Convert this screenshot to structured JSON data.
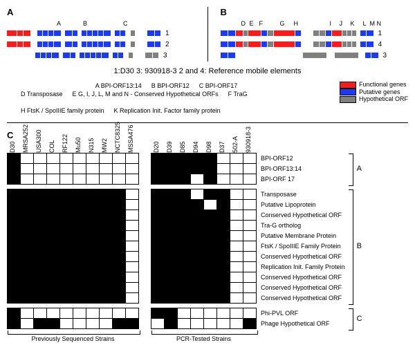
{
  "colors": {
    "functional": "#ff1a1a",
    "putative": "#1a3aff",
    "hypothetical": "#808080",
    "black": "#000000",
    "white": "#ffffff"
  },
  "panelA": {
    "label": "A",
    "letters": [
      "A",
      "B",
      "C"
    ],
    "letterX": [
      72,
      110,
      168
    ],
    "rows": [
      {
        "num": "1",
        "genes": [
          [
            "functional",
            14
          ],
          [
            "functional",
            8
          ],
          [
            "functional",
            10
          ],
          [
            "gap",
            8
          ],
          [
            "putative",
            7
          ],
          [
            "putative",
            7
          ],
          [
            "putative",
            7
          ],
          [
            "putative",
            10
          ],
          [
            "gap",
            4
          ],
          [
            "putative",
            10
          ],
          [
            "putative",
            7
          ],
          [
            "gap",
            4
          ],
          [
            "putative",
            7
          ],
          [
            "putative",
            7
          ],
          [
            "putative",
            7
          ],
          [
            "putative",
            7
          ],
          [
            "putative",
            10
          ],
          [
            "gap",
            4
          ],
          [
            "putative",
            7
          ],
          [
            "putative",
            7
          ],
          [
            "gap",
            6
          ],
          [
            "hypothetical",
            6
          ],
          [
            "gap",
            16
          ],
          [
            "putative",
            10
          ],
          [
            "putative",
            8
          ]
        ]
      },
      {
        "num": "2",
        "genes": [
          [
            "functional",
            14
          ],
          [
            "functional",
            8
          ],
          [
            "functional",
            10
          ],
          [
            "gap",
            8
          ],
          [
            "putative",
            7
          ],
          [
            "putative",
            7
          ],
          [
            "putative",
            7
          ],
          [
            "putative",
            10
          ],
          [
            "gap",
            4
          ],
          [
            "putative",
            10
          ],
          [
            "putative",
            7
          ],
          [
            "gap",
            4
          ],
          [
            "putative",
            7
          ],
          [
            "putative",
            7
          ],
          [
            "putative",
            7
          ],
          [
            "putative",
            7
          ],
          [
            "putative",
            10
          ],
          [
            "gap",
            4
          ],
          [
            "putative",
            7
          ],
          [
            "putative",
            7
          ],
          [
            "gap",
            6
          ],
          [
            "hypothetical",
            6
          ],
          [
            "gap",
            16
          ],
          [
            "putative",
            10
          ],
          [
            "putative",
            8
          ]
        ]
      },
      {
        "num": "3",
        "genes": [
          [
            "gap",
            40
          ],
          [
            "putative",
            7
          ],
          [
            "putative",
            7
          ],
          [
            "putative",
            7
          ],
          [
            "putative",
            10
          ],
          [
            "gap",
            4
          ],
          [
            "putative",
            10
          ],
          [
            "putative",
            7
          ],
          [
            "gap",
            4
          ],
          [
            "putative",
            7
          ],
          [
            "putative",
            7
          ],
          [
            "putative",
            7
          ],
          [
            "putative",
            7
          ],
          [
            "putative",
            10
          ],
          [
            "gap",
            4
          ],
          [
            "putative",
            7
          ],
          [
            "putative",
            7
          ],
          [
            "gap",
            6
          ],
          [
            "hypothetical",
            6
          ],
          [
            "gap",
            16
          ],
          [
            "hypothetical",
            10
          ],
          [
            "hypothetical",
            8
          ]
        ]
      }
    ]
  },
  "panelB": {
    "label": "B",
    "letters": [
      "D",
      "E",
      "F",
      "G",
      "H",
      "I",
      "J",
      "K",
      "L",
      "M",
      "N"
    ],
    "letterX": [
      30,
      42,
      56,
      86,
      106,
      158,
      172,
      188,
      206,
      216,
      226
    ],
    "rows": [
      {
        "num": "1",
        "genes": [
          [
            "putative",
            10
          ],
          [
            "putative",
            10
          ],
          [
            "functional",
            10
          ],
          [
            "hypothetical",
            6
          ],
          [
            "functional",
            18
          ],
          [
            "putative",
            8
          ],
          [
            "hypothetical",
            8
          ],
          [
            "functional",
            30
          ],
          [
            "putative",
            8
          ],
          [
            "gap",
            16
          ],
          [
            "hypothetical",
            8
          ],
          [
            "hypothetical",
            8
          ],
          [
            "putative",
            8
          ],
          [
            "functional",
            14
          ],
          [
            "hypothetical",
            6
          ],
          [
            "hypothetical",
            6
          ],
          [
            "hypothetical",
            6
          ],
          [
            "gap",
            4
          ],
          [
            "putative",
            8
          ],
          [
            "putative",
            10
          ]
        ]
      },
      {
        "num": "4",
        "genes": [
          [
            "putative",
            10
          ],
          [
            "putative",
            10
          ],
          [
            "functional",
            10
          ],
          [
            "hypothetical",
            6
          ],
          [
            "functional",
            18
          ],
          [
            "putative",
            8
          ],
          [
            "hypothetical",
            8
          ],
          [
            "functional",
            30
          ],
          [
            "putative",
            8
          ],
          [
            "gap",
            16
          ],
          [
            "hypothetical",
            8
          ],
          [
            "hypothetical",
            8
          ],
          [
            "putative",
            8
          ],
          [
            "functional",
            14
          ],
          [
            "hypothetical",
            6
          ],
          [
            "hypothetical",
            6
          ],
          [
            "hypothetical",
            6
          ],
          [
            "gap",
            4
          ],
          [
            "putative",
            8
          ],
          [
            "putative",
            10
          ]
        ]
      },
      {
        "num": "3",
        "genes": [
          [
            "putative",
            10
          ],
          [
            "putative",
            10
          ],
          [
            "gap",
            96
          ],
          [
            "hypothetical",
            34
          ],
          [
            "gap",
            10
          ],
          [
            "hypothetical",
            34
          ],
          [
            "gap",
            8
          ],
          [
            "putative",
            8
          ],
          [
            "putative",
            10
          ]
        ]
      }
    ]
  },
  "midLine": "1:D30    3: 930918-3    2 and 4: Reference mobile elements",
  "legendTop": [
    "A  BPI-ORF13:14",
    "B  BPI-ORF12",
    "C  BPI-ORF17"
  ],
  "legendBottom": [
    "D Transposase",
    "E  G, I, J, L, M and N - Conserved Hypothetical ORFs",
    "F TraG",
    "H FtsK / SpoIIIE family protein",
    "K Replication Init. Factor family protein"
  ],
  "legendSwatches": [
    {
      "label": "Functional genes",
      "color": "#ff1a1a"
    },
    {
      "label": "Putative genes",
      "color": "#1a3aff"
    },
    {
      "label": "Hypothetical ORF",
      "color": "#808080"
    }
  ],
  "panelC": {
    "label": "C",
    "cols1": [
      "D30",
      "MRSA252",
      "USA300",
      "COL",
      "RF122",
      "Mu50",
      "N315",
      "MW2",
      "NCTC8325",
      "MSSA476"
    ],
    "cols2": [
      "D20",
      "D39",
      "D85",
      "D94",
      "D98",
      "D37",
      "502-A",
      "930918-3"
    ],
    "rows": [
      {
        "label": "BPI-ORF12",
        "v1": [
          1,
          0,
          0,
          0,
          0,
          0,
          0,
          0,
          0,
          0
        ],
        "v2": [
          1,
          1,
          1,
          1,
          1,
          0,
          0,
          0
        ],
        "group": "A"
      },
      {
        "label": "BPI-ORF13:14",
        "v1": [
          1,
          0,
          0,
          0,
          0,
          0,
          0,
          0,
          0,
          0
        ],
        "v2": [
          1,
          1,
          1,
          1,
          1,
          0,
          0,
          0
        ],
        "group": "A"
      },
      {
        "label": "BPI-ORF 17",
        "v1": [
          1,
          0,
          0,
          0,
          0,
          0,
          0,
          0,
          0,
          0
        ],
        "v2": [
          1,
          1,
          1,
          0,
          1,
          0,
          0,
          0
        ],
        "group": "A"
      },
      {
        "label": "Transposase",
        "v1": [
          1,
          1,
          1,
          1,
          1,
          1,
          1,
          1,
          1,
          0
        ],
        "v2": [
          1,
          1,
          1,
          0,
          1,
          1,
          0,
          0
        ],
        "group": "B"
      },
      {
        "label": "Putative Lipoprotein",
        "v1": [
          1,
          1,
          1,
          1,
          1,
          1,
          1,
          1,
          1,
          0
        ],
        "v2": [
          1,
          1,
          1,
          1,
          0,
          1,
          0,
          0
        ],
        "group": "B"
      },
      {
        "label": "Conserved Hypothetical ORF",
        "v1": [
          1,
          1,
          1,
          1,
          1,
          1,
          1,
          1,
          1,
          0
        ],
        "v2": [
          1,
          1,
          1,
          1,
          1,
          1,
          0,
          0
        ],
        "group": "B"
      },
      {
        "label": "Tra-G ortholog",
        "v1": [
          1,
          1,
          1,
          1,
          1,
          1,
          1,
          1,
          1,
          0
        ],
        "v2": [
          1,
          1,
          1,
          1,
          1,
          1,
          0,
          0
        ],
        "group": "B"
      },
      {
        "label": "Putative Membrane Protein",
        "v1": [
          1,
          1,
          1,
          1,
          1,
          1,
          1,
          1,
          1,
          0
        ],
        "v2": [
          1,
          1,
          1,
          1,
          1,
          1,
          0,
          0
        ],
        "group": "B"
      },
      {
        "label": "FtsK / SpoIIIE Family Protein",
        "v1": [
          1,
          1,
          1,
          1,
          1,
          1,
          1,
          1,
          1,
          0
        ],
        "v2": [
          1,
          1,
          1,
          1,
          1,
          1,
          0,
          0
        ],
        "group": "B"
      },
      {
        "label": "Conserved Hypothetical ORF",
        "v1": [
          1,
          1,
          1,
          1,
          1,
          1,
          1,
          1,
          1,
          0
        ],
        "v2": [
          1,
          1,
          1,
          1,
          1,
          1,
          0,
          0
        ],
        "group": "B"
      },
      {
        "label": "Replication Init. Family Protein",
        "v1": [
          1,
          1,
          1,
          1,
          1,
          1,
          1,
          1,
          1,
          0
        ],
        "v2": [
          1,
          1,
          1,
          1,
          1,
          1,
          0,
          0
        ],
        "group": "B"
      },
      {
        "label": "Conserved Hypothetical ORF",
        "v1": [
          1,
          1,
          1,
          1,
          1,
          1,
          1,
          1,
          1,
          0
        ],
        "v2": [
          1,
          1,
          1,
          1,
          1,
          1,
          0,
          0
        ],
        "group": "B"
      },
      {
        "label": "Conserved Hypothetical ORF",
        "v1": [
          1,
          1,
          1,
          1,
          1,
          1,
          1,
          1,
          1,
          0
        ],
        "v2": [
          1,
          1,
          1,
          1,
          1,
          1,
          0,
          0
        ],
        "group": "B"
      },
      {
        "label": "Conserved Hypothetical ORF",
        "v1": [
          1,
          1,
          1,
          1,
          1,
          1,
          1,
          1,
          1,
          0
        ],
        "v2": [
          1,
          1,
          1,
          1,
          1,
          1,
          0,
          0
        ],
        "group": "B"
      },
      {
        "label": "Phi-PVL ORF",
        "v1": [
          1,
          0,
          0,
          0,
          0,
          0,
          0,
          0,
          0,
          0
        ],
        "v2": [
          1,
          1,
          0,
          0,
          0,
          0,
          0,
          0
        ],
        "group": "C"
      },
      {
        "label": "Phage Hypothetical ORF",
        "v1": [
          1,
          0,
          1,
          1,
          0,
          0,
          0,
          0,
          1,
          1
        ],
        "v2": [
          0,
          1,
          0,
          0,
          0,
          0,
          0,
          1
        ],
        "group": "C"
      }
    ],
    "groups": {
      "A": {
        "label": "A"
      },
      "B": {
        "label": "B"
      },
      "C": {
        "label": "C"
      }
    },
    "underLabels": [
      "Previously Sequenced Strains",
      "PCR-Tested Strains"
    ]
  }
}
